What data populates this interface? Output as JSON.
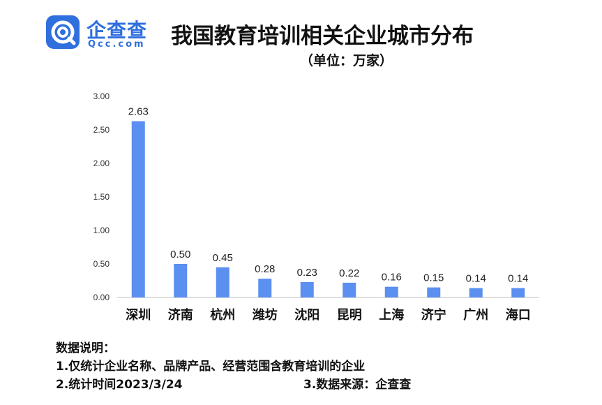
{
  "logo": {
    "name": "企查查",
    "url": "Qcc.com"
  },
  "title": "我国教育培训相关企业城市分布",
  "subtitle": "（单位：万家）",
  "colors": {
    "bar": "#5b8ff0",
    "brand": "#2f6fde",
    "axis": "#bfbfbf"
  },
  "chart_data": {
    "type": "bar",
    "categories": [
      "深圳",
      "济南",
      "杭州",
      "潍坊",
      "沈阳",
      "昆明",
      "上海",
      "济宁",
      "广州",
      "海口"
    ],
    "values": [
      2.63,
      0.5,
      0.45,
      0.28,
      0.23,
      0.22,
      0.16,
      0.15,
      0.14,
      0.14
    ],
    "value_labels": [
      "2.63",
      "0.50",
      "0.45",
      "0.28",
      "0.23",
      "0.22",
      "0.16",
      "0.15",
      "0.14",
      "0.14"
    ],
    "ylim": [
      0,
      3
    ],
    "yticks": [
      "0.00",
      "0.50",
      "1.00",
      "1.50",
      "2.00",
      "2.50",
      "3.00"
    ],
    "grid": false
  },
  "notes": {
    "heading": "数据说明：",
    "line1": "1.仅统计企业名称、品牌产品、经营范围含教育培训的企业",
    "line2": "2.统计时间2023/3/24",
    "line3": "3.数据来源：企查查"
  }
}
